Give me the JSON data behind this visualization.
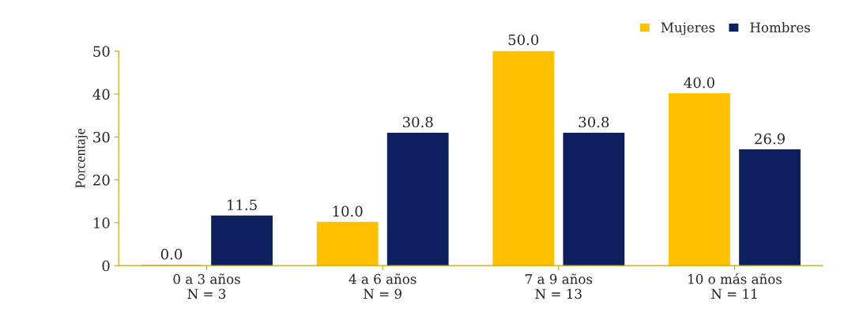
{
  "chart_data": {
    "type": "bar",
    "ylabel": "Porcentaje",
    "categories": [
      "0 a 3 años\nN = 3",
      "4 a 6 años\nN = 9",
      "7 a 9 años\nN = 13",
      "10 o más años\nN = 11"
    ],
    "series": [
      {
        "name": "Mujeres",
        "color": "#ffc000",
        "values": [
          0.0,
          10.0,
          50.0,
          40.0
        ],
        "value_labels": [
          "0.0",
          "10.0",
          "50.0",
          "40.0"
        ]
      },
      {
        "name": "Hombres",
        "color": "#0d1f5c",
        "values": [
          11.5,
          30.8,
          30.8,
          26.9
        ],
        "value_labels": [
          "11.5",
          "30.8",
          "30.8",
          "26.9"
        ]
      }
    ],
    "ylim": [
      0,
      50
    ],
    "yticks": [
      0,
      10,
      20,
      30,
      40,
      50
    ],
    "grid": false,
    "legend": "top right"
  }
}
